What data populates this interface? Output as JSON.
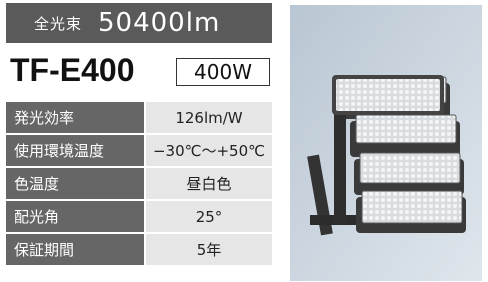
{
  "header": {
    "label": "全光束",
    "value": "50400lm"
  },
  "model": "TF-E400",
  "wattage": "400W",
  "table": {
    "rows": [
      [
        "発光効率",
        "126lm/W"
      ],
      [
        "使用環境温度",
        "−30℃〜+50℃"
      ],
      [
        "色温度",
        "昼白色"
      ],
      [
        "配光角",
        "25°"
      ],
      [
        "保証期間",
        "5年"
      ]
    ]
  }
}
